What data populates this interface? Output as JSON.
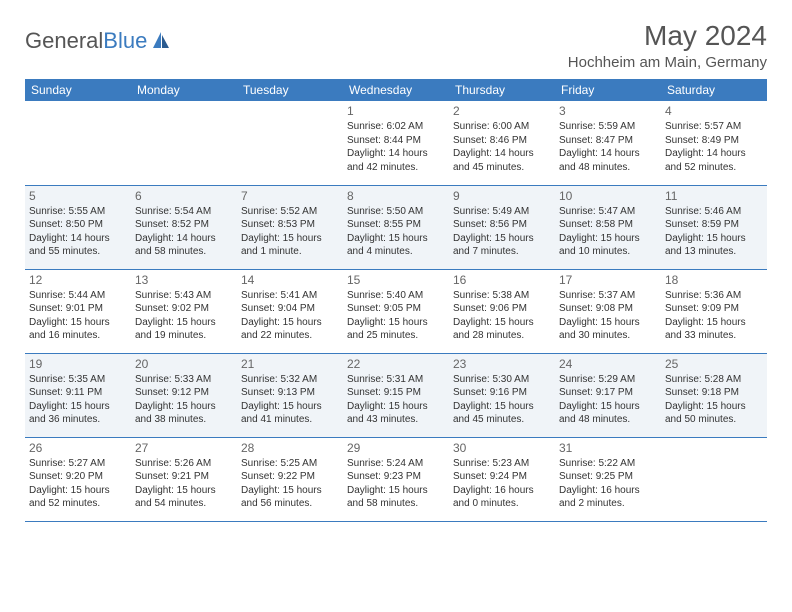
{
  "brand": {
    "name_part1": "General",
    "name_part2": "Blue"
  },
  "header": {
    "month_title": "May 2024",
    "location": "Hochheim am Main, Germany"
  },
  "colors": {
    "header_bg": "#3b7bbf",
    "header_text": "#ffffff",
    "alt_row_bg": "#f0f4f8",
    "border_color": "#3b7bbf",
    "title_color": "#555555",
    "text_color": "#333333",
    "logo_blue": "#3b7bbf"
  },
  "typography": {
    "month_title_fontsize": 28,
    "location_fontsize": 15,
    "dayheader_fontsize": 12,
    "daynum_fontsize": 12,
    "detail_fontsize": 10
  },
  "weekdays": [
    "Sunday",
    "Monday",
    "Tuesday",
    "Wednesday",
    "Thursday",
    "Friday",
    "Saturday"
  ],
  "weeks": [
    [
      null,
      null,
      null,
      {
        "n": "1",
        "sunrise": "6:02 AM",
        "sunset": "8:44 PM",
        "daylight": "14 hours and 42 minutes."
      },
      {
        "n": "2",
        "sunrise": "6:00 AM",
        "sunset": "8:46 PM",
        "daylight": "14 hours and 45 minutes."
      },
      {
        "n": "3",
        "sunrise": "5:59 AM",
        "sunset": "8:47 PM",
        "daylight": "14 hours and 48 minutes."
      },
      {
        "n": "4",
        "sunrise": "5:57 AM",
        "sunset": "8:49 PM",
        "daylight": "14 hours and 52 minutes."
      }
    ],
    [
      {
        "n": "5",
        "sunrise": "5:55 AM",
        "sunset": "8:50 PM",
        "daylight": "14 hours and 55 minutes."
      },
      {
        "n": "6",
        "sunrise": "5:54 AM",
        "sunset": "8:52 PM",
        "daylight": "14 hours and 58 minutes."
      },
      {
        "n": "7",
        "sunrise": "5:52 AM",
        "sunset": "8:53 PM",
        "daylight": "15 hours and 1 minute."
      },
      {
        "n": "8",
        "sunrise": "5:50 AM",
        "sunset": "8:55 PM",
        "daylight": "15 hours and 4 minutes."
      },
      {
        "n": "9",
        "sunrise": "5:49 AM",
        "sunset": "8:56 PM",
        "daylight": "15 hours and 7 minutes."
      },
      {
        "n": "10",
        "sunrise": "5:47 AM",
        "sunset": "8:58 PM",
        "daylight": "15 hours and 10 minutes."
      },
      {
        "n": "11",
        "sunrise": "5:46 AM",
        "sunset": "8:59 PM",
        "daylight": "15 hours and 13 minutes."
      }
    ],
    [
      {
        "n": "12",
        "sunrise": "5:44 AM",
        "sunset": "9:01 PM",
        "daylight": "15 hours and 16 minutes."
      },
      {
        "n": "13",
        "sunrise": "5:43 AM",
        "sunset": "9:02 PM",
        "daylight": "15 hours and 19 minutes."
      },
      {
        "n": "14",
        "sunrise": "5:41 AM",
        "sunset": "9:04 PM",
        "daylight": "15 hours and 22 minutes."
      },
      {
        "n": "15",
        "sunrise": "5:40 AM",
        "sunset": "9:05 PM",
        "daylight": "15 hours and 25 minutes."
      },
      {
        "n": "16",
        "sunrise": "5:38 AM",
        "sunset": "9:06 PM",
        "daylight": "15 hours and 28 minutes."
      },
      {
        "n": "17",
        "sunrise": "5:37 AM",
        "sunset": "9:08 PM",
        "daylight": "15 hours and 30 minutes."
      },
      {
        "n": "18",
        "sunrise": "5:36 AM",
        "sunset": "9:09 PM",
        "daylight": "15 hours and 33 minutes."
      }
    ],
    [
      {
        "n": "19",
        "sunrise": "5:35 AM",
        "sunset": "9:11 PM",
        "daylight": "15 hours and 36 minutes."
      },
      {
        "n": "20",
        "sunrise": "5:33 AM",
        "sunset": "9:12 PM",
        "daylight": "15 hours and 38 minutes."
      },
      {
        "n": "21",
        "sunrise": "5:32 AM",
        "sunset": "9:13 PM",
        "daylight": "15 hours and 41 minutes."
      },
      {
        "n": "22",
        "sunrise": "5:31 AM",
        "sunset": "9:15 PM",
        "daylight": "15 hours and 43 minutes."
      },
      {
        "n": "23",
        "sunrise": "5:30 AM",
        "sunset": "9:16 PM",
        "daylight": "15 hours and 45 minutes."
      },
      {
        "n": "24",
        "sunrise": "5:29 AM",
        "sunset": "9:17 PM",
        "daylight": "15 hours and 48 minutes."
      },
      {
        "n": "25",
        "sunrise": "5:28 AM",
        "sunset": "9:18 PM",
        "daylight": "15 hours and 50 minutes."
      }
    ],
    [
      {
        "n": "26",
        "sunrise": "5:27 AM",
        "sunset": "9:20 PM",
        "daylight": "15 hours and 52 minutes."
      },
      {
        "n": "27",
        "sunrise": "5:26 AM",
        "sunset": "9:21 PM",
        "daylight": "15 hours and 54 minutes."
      },
      {
        "n": "28",
        "sunrise": "5:25 AM",
        "sunset": "9:22 PM",
        "daylight": "15 hours and 56 minutes."
      },
      {
        "n": "29",
        "sunrise": "5:24 AM",
        "sunset": "9:23 PM",
        "daylight": "15 hours and 58 minutes."
      },
      {
        "n": "30",
        "sunrise": "5:23 AM",
        "sunset": "9:24 PM",
        "daylight": "16 hours and 0 minutes."
      },
      {
        "n": "31",
        "sunrise": "5:22 AM",
        "sunset": "9:25 PM",
        "daylight": "16 hours and 2 minutes."
      },
      null
    ]
  ],
  "labels": {
    "sunrise_prefix": "Sunrise: ",
    "sunset_prefix": "Sunset: ",
    "daylight_prefix": "Daylight: "
  }
}
